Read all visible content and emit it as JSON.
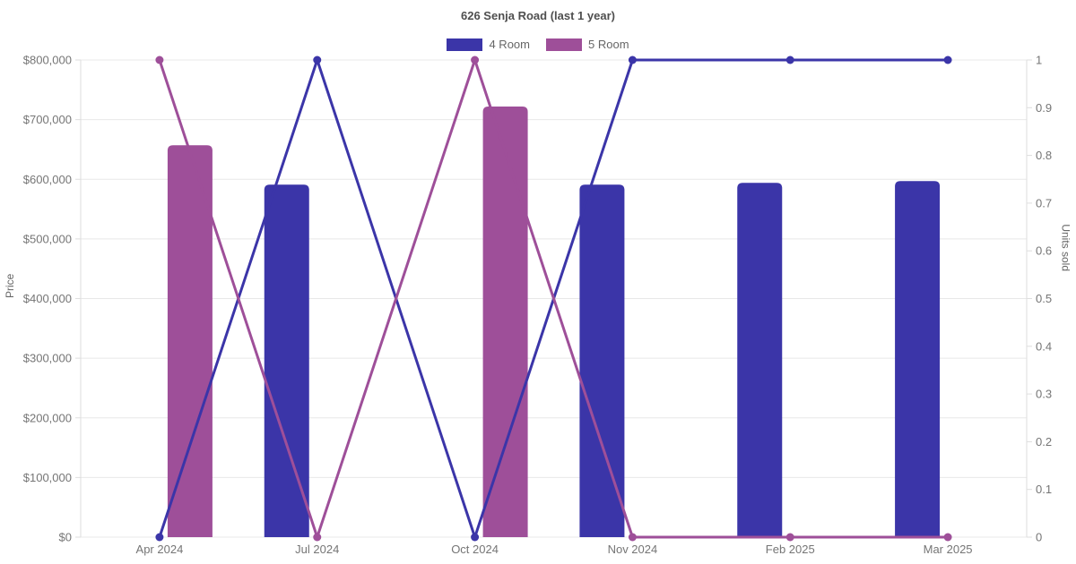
{
  "title": "626 Senja Road (last 1 year)",
  "legend": {
    "items": [
      {
        "label": "4 Room",
        "color": "#3b35a8"
      },
      {
        "label": "5 Room",
        "color": "#9e4f99"
      }
    ]
  },
  "left_axis": {
    "title": "Price",
    "min": 0,
    "max": 800000,
    "tick_step": 100000,
    "ticks": [
      "$0",
      "$100,000",
      "$200,000",
      "$300,000",
      "$400,000",
      "$500,000",
      "$600,000",
      "$700,000",
      "$800,000"
    ]
  },
  "right_axis": {
    "title": "Units sold",
    "min": 0,
    "max": 1,
    "tick_step": 0.1,
    "ticks": [
      "0",
      "0.1",
      "0.2",
      "0.3",
      "0.4",
      "0.5",
      "0.6",
      "0.7",
      "0.8",
      "0.9",
      "1"
    ]
  },
  "chart_data": {
    "type": "bar",
    "subtype": "combo-bar-line-dual-axis",
    "title": "626 Senja Road (last 1 year)",
    "categories": [
      "Apr 2024",
      "Jul 2024",
      "Oct 2024",
      "Nov 2024",
      "Feb 2025",
      "Mar 2025"
    ],
    "series": [
      {
        "name": "4 Room",
        "type": "bar",
        "axis": "left",
        "quantity": "price",
        "color": "#3b35a8",
        "values": [
          null,
          591000,
          null,
          591000,
          594000,
          597000
        ]
      },
      {
        "name": "5 Room",
        "type": "bar",
        "axis": "left",
        "quantity": "price",
        "color": "#9e4f99",
        "values": [
          657000,
          null,
          722000,
          null,
          null,
          null
        ]
      },
      {
        "name": "4 Room",
        "type": "line",
        "axis": "right",
        "quantity": "units_sold",
        "color": "#3b35a8",
        "values": [
          0,
          1,
          0,
          1,
          1,
          1
        ]
      },
      {
        "name": "5 Room",
        "type": "line",
        "axis": "right",
        "quantity": "units_sold",
        "color": "#9e4f99",
        "values": [
          1,
          0,
          1,
          0,
          0,
          0
        ]
      }
    ],
    "xlabel": "",
    "ylabel_left": "Price",
    "ylabel_right": "Units sold",
    "ylim_left": [
      0,
      800000
    ],
    "ylim_right": [
      0,
      1
    ],
    "grid": true,
    "legend_position": "top",
    "colors": {
      "grid": "#e8e8e8",
      "axis_border": "#dedede",
      "tick_text": "#757575"
    }
  }
}
